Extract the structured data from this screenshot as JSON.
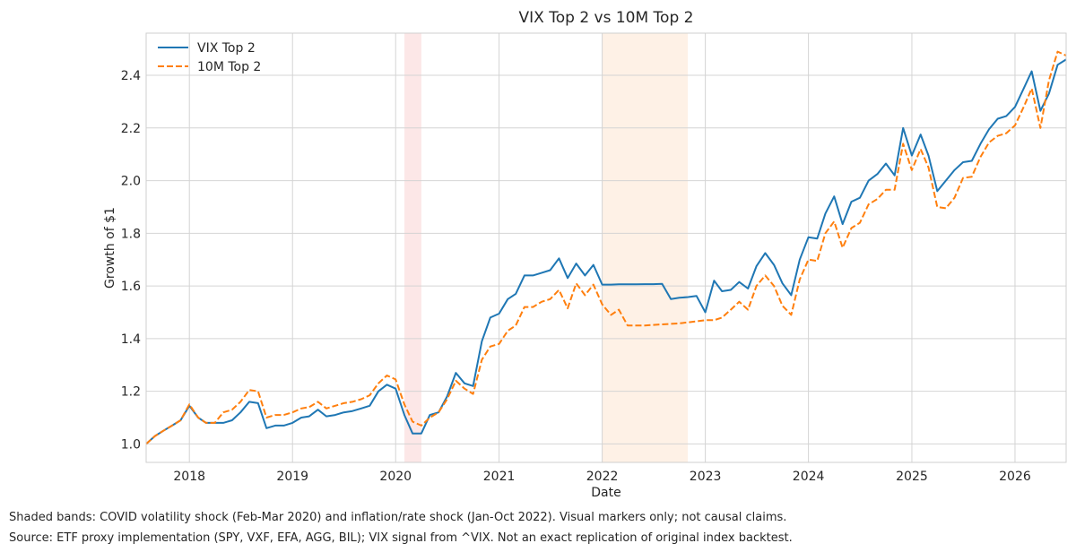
{
  "chart_data": {
    "type": "line",
    "title": "VIX Top 2 vs 10M Top 2",
    "xlabel": "Date",
    "ylabel": "Growth of $1",
    "xlim": [
      "2017-08-01",
      "2026-07-01"
    ],
    "ylim": [
      0.93,
      2.56
    ],
    "x_ticks": [
      "2018",
      "2019",
      "2020",
      "2021",
      "2022",
      "2023",
      "2024",
      "2025",
      "2026"
    ],
    "y_ticks": [
      "1.0",
      "1.2",
      "1.4",
      "1.6",
      "1.8",
      "2.0",
      "2.2",
      "2.4"
    ],
    "grid": true,
    "legend_position": "top-left",
    "shaded_bands": [
      {
        "start": "2020-02-01",
        "end": "2020-04-01",
        "color": "#f8c9c9"
      },
      {
        "start": "2022-01-01",
        "end": "2022-10-31",
        "color": "#fde0c8"
      }
    ],
    "dates": [
      "2017-08",
      "2017-09",
      "2017-10",
      "2017-11",
      "2017-12",
      "2018-01",
      "2018-02",
      "2018-03",
      "2018-04",
      "2018-05",
      "2018-06",
      "2018-07",
      "2018-08",
      "2018-09",
      "2018-10",
      "2018-11",
      "2018-12",
      "2019-01",
      "2019-02",
      "2019-03",
      "2019-04",
      "2019-05",
      "2019-06",
      "2019-07",
      "2019-08",
      "2019-09",
      "2019-10",
      "2019-11",
      "2019-12",
      "2020-01",
      "2020-02",
      "2020-03",
      "2020-04",
      "2020-05",
      "2020-06",
      "2020-07",
      "2020-08",
      "2020-09",
      "2020-10",
      "2020-11",
      "2020-12",
      "2021-01",
      "2021-02",
      "2021-03",
      "2021-04",
      "2021-05",
      "2021-06",
      "2021-07",
      "2021-08",
      "2021-09",
      "2021-10",
      "2021-11",
      "2021-12",
      "2022-01",
      "2022-02",
      "2022-03",
      "2022-04",
      "2022-05",
      "2022-06",
      "2022-07",
      "2022-08",
      "2022-09",
      "2022-10",
      "2022-11",
      "2022-12",
      "2023-01",
      "2023-02",
      "2023-03",
      "2023-04",
      "2023-05",
      "2023-06",
      "2023-07",
      "2023-08",
      "2023-09",
      "2023-10",
      "2023-11",
      "2023-12",
      "2024-01",
      "2024-02",
      "2024-03",
      "2024-04",
      "2024-05",
      "2024-06",
      "2024-07",
      "2024-08",
      "2024-09",
      "2024-10",
      "2024-11",
      "2024-12",
      "2025-01",
      "2025-02",
      "2025-03",
      "2025-04",
      "2025-05",
      "2025-06",
      "2025-07",
      "2025-08",
      "2025-09",
      "2025-10",
      "2025-11",
      "2025-12",
      "2026-01",
      "2026-02",
      "2026-03",
      "2026-04",
      "2026-05",
      "2026-06",
      "2026-07"
    ],
    "series": [
      {
        "name": "VIX Top 2",
        "color": "#1f77b4",
        "style": "solid",
        "values": [
          1.0,
          1.03,
          1.05,
          1.07,
          1.09,
          1.145,
          1.1,
          1.08,
          1.08,
          1.08,
          1.09,
          1.12,
          1.16,
          1.155,
          1.06,
          1.07,
          1.07,
          1.08,
          1.1,
          1.105,
          1.13,
          1.105,
          1.11,
          1.12,
          1.125,
          1.135,
          1.145,
          1.2,
          1.225,
          1.21,
          1.11,
          1.04,
          1.04,
          1.11,
          1.12,
          1.18,
          1.27,
          1.23,
          1.22,
          1.39,
          1.48,
          1.495,
          1.55,
          1.57,
          1.64,
          1.64,
          1.65,
          1.66,
          1.705,
          1.63,
          1.685,
          1.64,
          1.68,
          1.605,
          1.605,
          1.606,
          1.606,
          1.606,
          1.607,
          1.607,
          1.608,
          1.55,
          1.555,
          1.558,
          1.562,
          1.5,
          1.62,
          1.58,
          1.585,
          1.615,
          1.59,
          1.675,
          1.725,
          1.68,
          1.61,
          1.565,
          1.7,
          1.785,
          1.78,
          1.875,
          1.94,
          1.835,
          1.92,
          1.935,
          2.0,
          2.025,
          2.065,
          2.02,
          2.2,
          2.095,
          2.175,
          2.095,
          1.96,
          2.0,
          2.04,
          2.07,
          2.075,
          2.14,
          2.195,
          2.235,
          2.245,
          2.28,
          2.35,
          2.415,
          2.265,
          2.33,
          2.44,
          2.46
        ]
      },
      {
        "name": "10M Top 2",
        "color": "#ff7f0e",
        "style": "dashed",
        "values": [
          1.0,
          1.03,
          1.05,
          1.07,
          1.09,
          1.15,
          1.1,
          1.08,
          1.08,
          1.12,
          1.13,
          1.16,
          1.205,
          1.2,
          1.1,
          1.11,
          1.11,
          1.12,
          1.135,
          1.14,
          1.16,
          1.135,
          1.145,
          1.155,
          1.16,
          1.17,
          1.185,
          1.23,
          1.26,
          1.245,
          1.15,
          1.085,
          1.07,
          1.1,
          1.12,
          1.17,
          1.24,
          1.21,
          1.19,
          1.32,
          1.37,
          1.38,
          1.43,
          1.45,
          1.52,
          1.52,
          1.54,
          1.55,
          1.585,
          1.515,
          1.61,
          1.565,
          1.605,
          1.53,
          1.49,
          1.51,
          1.45,
          1.45,
          1.45,
          1.452,
          1.454,
          1.456,
          1.458,
          1.462,
          1.466,
          1.47,
          1.47,
          1.48,
          1.51,
          1.54,
          1.51,
          1.6,
          1.64,
          1.6,
          1.525,
          1.49,
          1.625,
          1.7,
          1.695,
          1.8,
          1.845,
          1.745,
          1.82,
          1.84,
          1.91,
          1.93,
          1.965,
          1.965,
          2.14,
          2.04,
          2.12,
          2.05,
          1.9,
          1.895,
          1.935,
          2.01,
          2.015,
          2.09,
          2.145,
          2.17,
          2.18,
          2.21,
          2.28,
          2.35,
          2.2,
          2.38,
          2.49,
          2.475
        ]
      }
    ]
  },
  "footnotes": [
    "Shaded bands: COVID volatility shock (Feb-Mar 2020) and inflation/rate shock (Jan-Oct 2022). Visual markers only; not causal claims.",
    "Source: ETF proxy implementation (SPY, VXF, EFA, AGG, BIL); VIX signal from ^VIX. Not an exact replication of original index backtest."
  ]
}
